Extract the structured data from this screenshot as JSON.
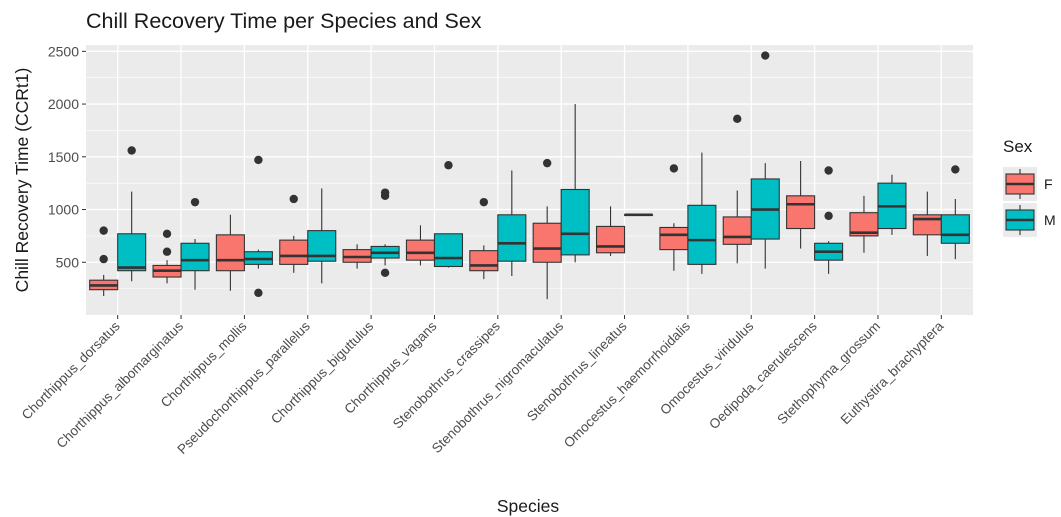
{
  "chart_data": {
    "type": "box",
    "title": "Chill Recovery Time per Species and Sex",
    "xlabel": "Species",
    "ylabel": "Chill Recovery Time (CCRt1)",
    "ylim": [
      0,
      2560
    ],
    "yticks": [
      500,
      1000,
      1500,
      2000,
      2500
    ],
    "grid": true,
    "legend": {
      "title": "Sex",
      "position": "right",
      "entries": [
        {
          "label": "F",
          "color": "#F8766D"
        },
        {
          "label": "M",
          "color": "#00BFC4"
        }
      ]
    },
    "categories": [
      "Chorthippus_dorsatus",
      "Chorthippus_albomarginatus",
      "Chorthippus_mollis",
      "Pseudochorthippus_parallelus",
      "Chorthippus_biguttulus",
      "Chorthippus_vagans",
      "Stenobothrus_crassipes",
      "Stenobothrus_nigromaculatus",
      "Stenobothrus_lineatus",
      "Omocestus_haemorrhoidalis",
      "Omocestus_viridulus",
      "Oedipoda_caerulescens",
      "Stethophyma_grossum",
      "Euthystira_brachyptera"
    ],
    "series": [
      {
        "name": "F",
        "color": "#F8766D",
        "boxes": [
          {
            "min": 180,
            "q1": 240,
            "median": 280,
            "q3": 330,
            "max": 380,
            "outliers": [
              530,
              800
            ]
          },
          {
            "min": 300,
            "q1": 360,
            "median": 420,
            "q3": 470,
            "max": 520,
            "outliers": [
              600,
              770
            ]
          },
          {
            "min": 230,
            "q1": 420,
            "median": 520,
            "q3": 760,
            "max": 950,
            "outliers": []
          },
          {
            "min": 400,
            "q1": 480,
            "median": 560,
            "q3": 710,
            "max": 750,
            "outliers": [
              1100
            ]
          },
          {
            "min": 440,
            "q1": 500,
            "median": 550,
            "q3": 620,
            "max": 670,
            "outliers": []
          },
          {
            "min": 470,
            "q1": 520,
            "median": 590,
            "q3": 710,
            "max": 850,
            "outliers": []
          },
          {
            "min": 340,
            "q1": 420,
            "median": 470,
            "q3": 610,
            "max": 660,
            "outliers": [
              1070
            ]
          },
          {
            "min": 150,
            "q1": 500,
            "median": 630,
            "q3": 870,
            "max": 1030,
            "outliers": [
              1440
            ]
          },
          {
            "min": 560,
            "q1": 590,
            "median": 650,
            "q3": 840,
            "max": 1030,
            "outliers": []
          },
          {
            "min": 420,
            "q1": 620,
            "median": 760,
            "q3": 830,
            "max": 870,
            "outliers": [
              1390
            ]
          },
          {
            "min": 490,
            "q1": 670,
            "median": 740,
            "q3": 930,
            "max": 1180,
            "outliers": [
              1860
            ]
          },
          {
            "min": 630,
            "q1": 820,
            "median": 1050,
            "q3": 1130,
            "max": 1460,
            "outliers": []
          },
          {
            "min": 590,
            "q1": 750,
            "median": 780,
            "q3": 970,
            "max": 1130,
            "outliers": []
          },
          {
            "min": 560,
            "q1": 760,
            "median": 910,
            "q3": 950,
            "max": 1170,
            "outliers": []
          }
        ]
      },
      {
        "name": "M",
        "color": "#00BFC4",
        "boxes": [
          {
            "min": 320,
            "q1": 420,
            "median": 450,
            "q3": 770,
            "max": 1170,
            "outliers": [
              1560
            ]
          },
          {
            "min": 240,
            "q1": 420,
            "median": 520,
            "q3": 680,
            "max": 720,
            "outliers": [
              1070
            ]
          },
          {
            "min": 440,
            "q1": 480,
            "median": 530,
            "q3": 600,
            "max": 620,
            "outliers": [
              210,
              1470
            ]
          },
          {
            "min": 300,
            "q1": 510,
            "median": 560,
            "q3": 800,
            "max": 1200,
            "outliers": []
          },
          {
            "min": 470,
            "q1": 540,
            "median": 590,
            "q3": 650,
            "max": 670,
            "outliers": [
              400,
              1130,
              1160
            ]
          },
          {
            "min": 450,
            "q1": 460,
            "median": 540,
            "q3": 770,
            "max": 770,
            "outliers": [
              1420
            ]
          },
          {
            "min": 370,
            "q1": 510,
            "median": 680,
            "q3": 950,
            "max": 1370,
            "outliers": []
          },
          {
            "min": 500,
            "q1": 570,
            "median": 770,
            "q3": 1190,
            "max": 2000,
            "outliers": []
          },
          {
            "min": 950,
            "q1": 950,
            "median": 950,
            "q3": 950,
            "max": 950,
            "outliers": []
          },
          {
            "min": 390,
            "q1": 480,
            "median": 710,
            "q3": 1040,
            "max": 1540,
            "outliers": []
          },
          {
            "min": 440,
            "q1": 720,
            "median": 1000,
            "q3": 1290,
            "max": 1440,
            "outliers": [
              2460
            ]
          },
          {
            "min": 390,
            "q1": 520,
            "median": 600,
            "q3": 680,
            "max": 700,
            "outliers": [
              940,
              1370
            ]
          },
          {
            "min": 760,
            "q1": 820,
            "median": 1030,
            "q3": 1250,
            "max": 1330,
            "outliers": []
          },
          {
            "min": 530,
            "q1": 680,
            "median": 760,
            "q3": 950,
            "max": 1100,
            "outliers": [
              1380
            ]
          }
        ]
      }
    ]
  }
}
